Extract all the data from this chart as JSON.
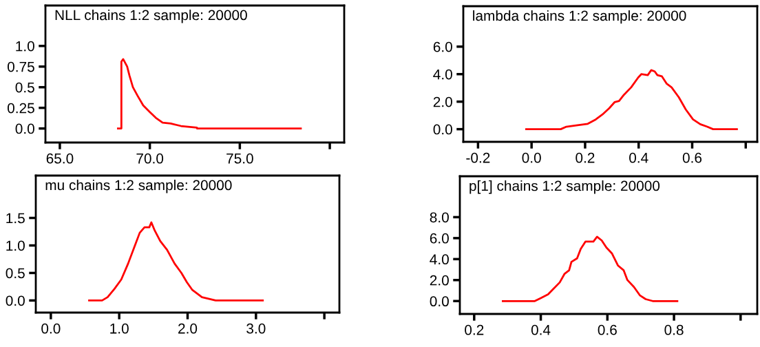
{
  "chart_data": [
    {
      "type": "line",
      "title": "NLL chains 1:2 sample: 20000",
      "x": [
        68.23,
        68.42,
        68.42,
        68.52,
        68.74,
        68.87,
        69.06,
        69.31,
        69.63,
        70.0,
        70.33,
        70.71,
        71.16,
        71.73,
        72.62,
        72.62,
        78.39
      ],
      "series": [
        {
          "color": "#ff0000",
          "values": [
            0.0,
            0.0,
            0.81,
            0.84,
            0.75,
            0.64,
            0.5,
            0.4,
            0.28,
            0.2,
            0.13,
            0.07,
            0.06,
            0.03,
            0.01,
            0.0,
            0.0
          ]
        }
      ],
      "xlim": [
        64.2,
        80.8
      ],
      "ylim": [
        -0.17,
        1.49
      ],
      "xticks": [
        {
          "value": 65,
          "label": "65.0"
        },
        {
          "value": 70,
          "label": "70.0"
        },
        {
          "value": 75,
          "label": "75.0"
        },
        {
          "value": 80,
          "label": null
        }
      ],
      "yticks": [
        {
          "value": 0,
          "label": "0.0"
        },
        0.25,
        0.5,
        0.75,
        {
          "value": 1,
          "label": "1.0"
        }
      ],
      "grid": false,
      "marker": "none",
      "line_style": "solid"
    },
    {
      "type": "line",
      "title": "lambda chains 1:2 sample: 20000",
      "x": [
        -0.02,
        0.109,
        0.13,
        0.167,
        0.21,
        0.24,
        0.265,
        0.29,
        0.31,
        0.327,
        0.345,
        0.372,
        0.398,
        0.41,
        0.434,
        0.447,
        0.46,
        0.47,
        0.487,
        0.505,
        0.523,
        0.55,
        0.576,
        0.603,
        0.63,
        0.656,
        0.678,
        0.767
      ],
      "series": [
        {
          "color": "#ff0000",
          "values": [
            0.0,
            0.0,
            0.18,
            0.27,
            0.39,
            0.71,
            1.07,
            1.52,
            1.96,
            2.05,
            2.5,
            3.04,
            3.75,
            4.0,
            3.93,
            4.29,
            4.2,
            3.93,
            3.84,
            3.3,
            3.04,
            2.32,
            1.43,
            0.71,
            0.36,
            0.18,
            0.0,
            0.0
          ]
        }
      ],
      "xlim": [
        -0.255,
        0.843
      ],
      "ylim": [
        -0.92,
        8.94
      ],
      "xticks": [
        -0.2,
        {
          "value": 0,
          "label": "0.0"
        },
        0.2,
        0.4,
        0.6,
        {
          "value": 0.8,
          "label": null
        }
      ],
      "yticks": [
        {
          "value": 0,
          "label": "0.0"
        },
        {
          "value": 2,
          "label": "2.0"
        },
        {
          "value": 4,
          "label": "4.0"
        },
        {
          "value": 6,
          "label": "6.0"
        }
      ],
      "grid": false,
      "marker": "none",
      "line_style": "solid"
    },
    {
      "type": "line",
      "title": "mu chains 1:2 sample: 20000",
      "x": [
        0.56,
        0.75,
        0.83,
        0.93,
        1.03,
        1.13,
        1.23,
        1.3,
        1.37,
        1.44,
        1.47,
        1.52,
        1.6,
        1.7,
        1.81,
        1.91,
        1.99,
        2.07,
        2.21,
        2.41,
        3.1
      ],
      "series": [
        {
          "color": "#ff0000",
          "values": [
            0.0,
            0.0,
            0.06,
            0.21,
            0.38,
            0.67,
            1.0,
            1.23,
            1.33,
            1.33,
            1.42,
            1.27,
            1.08,
            0.92,
            0.67,
            0.5,
            0.33,
            0.19,
            0.06,
            0.0,
            0.0
          ]
        }
      ],
      "xlim": [
        -0.22,
        4.22
      ],
      "ylim": [
        -0.22,
        2.27
      ],
      "xticks": [
        {
          "value": 0,
          "label": "0.0"
        },
        {
          "value": 1,
          "label": "1.0"
        },
        {
          "value": 2,
          "label": "2.0"
        },
        {
          "value": 3,
          "label": "3.0"
        },
        {
          "value": 4,
          "label": null
        }
      ],
      "yticks": [
        {
          "value": 0,
          "label": "0.0"
        },
        0.5,
        {
          "value": 1,
          "label": "1.0"
        },
        1.5
      ],
      "grid": false,
      "marker": "none",
      "line_style": "solid"
    },
    {
      "type": "line",
      "title": "p[1] chains 1:2 sample: 20000",
      "x": [
        0.286,
        0.382,
        0.401,
        0.422,
        0.436,
        0.457,
        0.471,
        0.485,
        0.492,
        0.509,
        0.52,
        0.534,
        0.558,
        0.569,
        0.583,
        0.597,
        0.614,
        0.632,
        0.649,
        0.66,
        0.68,
        0.698,
        0.715,
        0.736,
        0.81
      ],
      "series": [
        {
          "color": "#ff0000",
          "values": [
            0.0,
            0.0,
            0.3,
            0.64,
            1.1,
            1.78,
            2.58,
            2.93,
            3.73,
            4.07,
            4.98,
            5.67,
            5.67,
            6.13,
            5.78,
            5.1,
            4.53,
            3.38,
            2.93,
            2.01,
            1.33,
            0.53,
            0.18,
            0.0,
            0.0
          ]
        }
      ],
      "xlim": [
        0.157,
        1.05
      ],
      "ylim": [
        -1.23,
        11.9
      ],
      "xticks": [
        0.2,
        0.4,
        0.6,
        0.8,
        {
          "value": 1,
          "label": null
        }
      ],
      "yticks": [
        {
          "value": 0,
          "label": "0.0"
        },
        {
          "value": 2,
          "label": "2.0"
        },
        {
          "value": 4,
          "label": "4.0"
        },
        {
          "value": 6,
          "label": "6.0"
        },
        {
          "value": 8,
          "label": "8.0"
        }
      ],
      "grid": false,
      "marker": "none",
      "line_style": "solid"
    }
  ]
}
